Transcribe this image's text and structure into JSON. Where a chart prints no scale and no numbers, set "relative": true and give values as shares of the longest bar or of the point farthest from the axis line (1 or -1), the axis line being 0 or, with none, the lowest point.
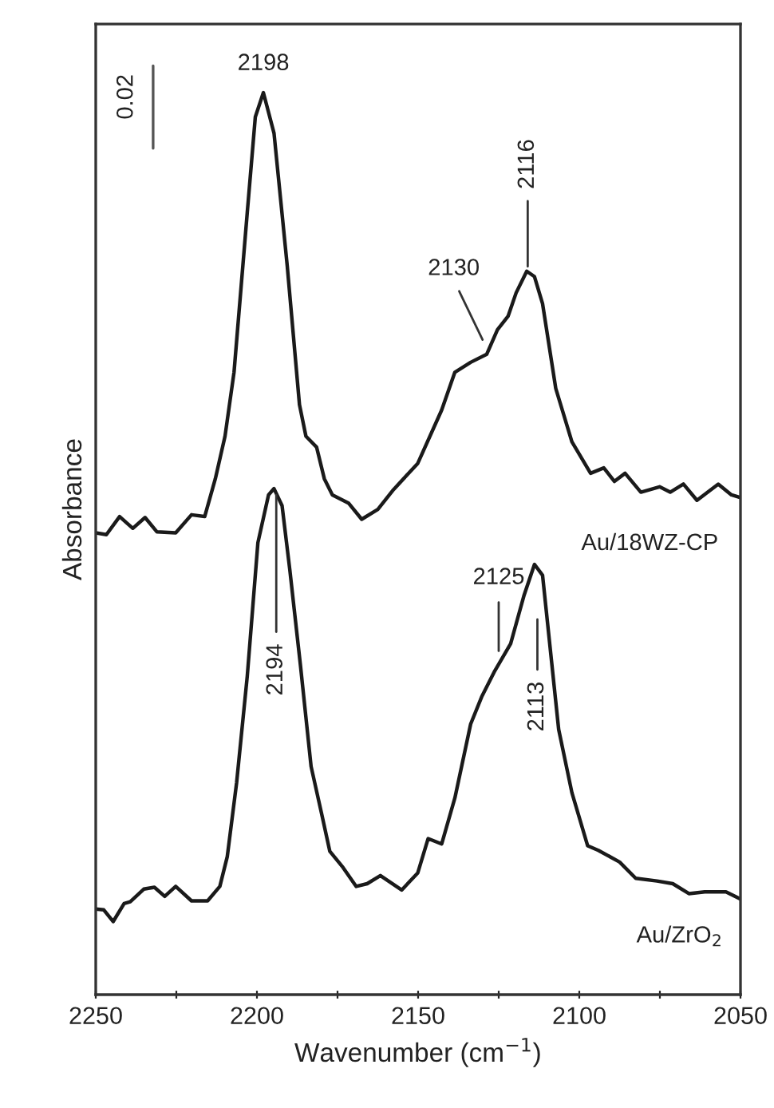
{
  "chart_data": {
    "type": "line",
    "relative": true,
    "xlabel": "Wavenumber (cm$^{−1}$)",
    "ylabel": "Absorbance",
    "xlim": [
      2250,
      2050
    ],
    "xticks": [
      2250,
      {
        "value": 2225,
        "label": null
      },
      2200,
      {
        "value": 2175,
        "label": null
      },
      2150,
      {
        "value": 2125,
        "label": null
      },
      2100,
      {
        "value": 2075,
        "label": null
      },
      2050
    ],
    "series": [
      {
        "name": "Au/18WZ-CP",
        "color": "#1a1a1a",
        "x": [
          2250,
          2246.7,
          2242.6,
          2238.5,
          2234.7,
          2231.0,
          2225.2,
          2220.3,
          2216.2,
          2212.9,
          2209.9,
          2207.1,
          2203.0,
          2200.5,
          2198,
          2194.7,
          2190.6,
          2186.8,
          2184.8,
          2181.5,
          2179.1,
          2176.6,
          2171.6,
          2167.5,
          2162.5,
          2157.6,
          2150.1,
          2142.7,
          2138.6,
          2133.7,
          2128.7,
          2125.4,
          2122.1,
          2119.6,
          2116.3,
          2113.9,
          2111.4,
          2107.3,
          2102.3,
          2096.5,
          2092.4,
          2089.1,
          2085.8,
          2080.9,
          2075.1,
          2071.8,
          2067.7,
          2063.5,
          2056.9,
          2052.8,
          2050
        ],
        "values": [
          0.512,
          0.51,
          0.53,
          0.517,
          0.529,
          0.513,
          0.512,
          0.532,
          0.53,
          0.572,
          0.619,
          0.69,
          0.867,
          0.973,
          1.0,
          0.955,
          0.808,
          0.654,
          0.619,
          0.607,
          0.572,
          0.554,
          0.545,
          0.527,
          0.538,
          0.56,
          0.589,
          0.648,
          0.69,
          0.701,
          0.71,
          0.737,
          0.752,
          0.778,
          0.802,
          0.796,
          0.766,
          0.672,
          0.613,
          0.578,
          0.584,
          0.569,
          0.578,
          0.557,
          0.563,
          0.557,
          0.566,
          0.548,
          0.566,
          0.554,
          0.551
        ]
      },
      {
        "name": "Au/ZrO$_{2}$",
        "color": "#1a1a1a",
        "x": [
          2250,
          2247.5,
          2244.6,
          2241.2,
          2239.3,
          2235.1,
          2231.8,
          2228.6,
          2225.2,
          2220.3,
          2215.3,
          2211.5,
          2209.2,
          2206.3,
          2203.0,
          2199.7,
          2196.4,
          2194.7,
          2192.2,
          2189.8,
          2186.5,
          2183.2,
          2179.9,
          2177.4,
          2173.3,
          2169.2,
          2165.8,
          2161.7,
          2155.1,
          2150.1,
          2146.9,
          2142.7,
          2138.6,
          2133.7,
          2130.3,
          2126.2,
          2121.3,
          2117.2,
          2113.9,
          2111.4,
          2106.4,
          2102.3,
          2097.4,
          2094.1,
          2087.5,
          2082.5,
          2075.9,
          2071.0,
          2066.0,
          2061.1,
          2054.5,
          2050
        ],
        "values": [
          0.095,
          0.094,
          0.081,
          0.101,
          0.103,
          0.117,
          0.119,
          0.109,
          0.12,
          0.104,
          0.104,
          0.12,
          0.153,
          0.235,
          0.353,
          0.501,
          0.554,
          0.561,
          0.542,
          0.471,
          0.365,
          0.253,
          0.2,
          0.159,
          0.141,
          0.12,
          0.123,
          0.132,
          0.116,
          0.135,
          0.173,
          0.167,
          0.218,
          0.3,
          0.33,
          0.359,
          0.389,
          0.442,
          0.477,
          0.465,
          0.294,
          0.224,
          0.165,
          0.16,
          0.147,
          0.129,
          0.126,
          0.123,
          0.112,
          0.114,
          0.114,
          0.106
        ]
      }
    ],
    "annotations": [
      {
        "text": "2198",
        "x": 2198,
        "y": 1.0
      },
      {
        "text": "2130",
        "x": 2130,
        "y": 0.726
      },
      {
        "text": "2116",
        "x": 2116,
        "y": 0.802
      },
      {
        "text": "2194",
        "x": 2194,
        "y": 0.561
      },
      {
        "text": "2125",
        "x": 2125,
        "y": 0.381
      },
      {
        "text": "2113",
        "x": 2113,
        "y": 0.416
      },
      "0.02"
    ],
    "grid": false,
    "legend": false,
    "line_style": "solid",
    "marker": "none"
  }
}
